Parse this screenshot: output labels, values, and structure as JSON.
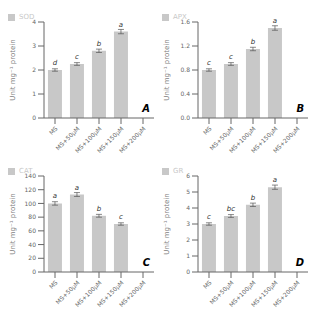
{
  "chart_data": [
    {
      "type": "bar",
      "title": "A",
      "categories": [
        "MS",
        "MS+50μM",
        "MS+100μM",
        "MS+150μM",
        "MS+200μM"
      ],
      "series": [
        {
          "name": "SOD",
          "color": "#c8c8c8",
          "values": [
            2.0,
            2.25,
            2.8,
            3.6,
            null
          ],
          "errors": [
            0.05,
            0.05625,
            0.07,
            0.09,
            null
          ]
        }
      ],
      "annotations": [
        "d",
        "c",
        "b",
        "a",
        null
      ],
      "y_label": "Unit mg⁻¹ protein",
      "ylim": [
        0,
        4.0
      ],
      "yticks": [
        0,
        1,
        2,
        3,
        4
      ],
      "legend": "upper left",
      "grid": false
    },
    {
      "type": "bar",
      "title": "B",
      "categories": [
        "MS",
        "MS+50μM",
        "MS+100μM",
        "MS+150μM",
        "MS+200μM"
      ],
      "series": [
        {
          "name": "APX",
          "color": "#c8c8c8",
          "values": [
            0.8,
            0.9,
            1.15,
            1.5,
            null
          ],
          "errors": [
            0.02,
            0.0225,
            0.02875,
            0.0375,
            null
          ]
        }
      ],
      "annotations": [
        "c",
        "c",
        "b",
        "a",
        null
      ],
      "y_label": "Unit mg⁻¹ protein",
      "ylim": [
        0.0,
        1.6
      ],
      "yticks": [
        {
          "value": 0.0,
          "label": "0.0"
        },
        0.4,
        0.8,
        1.2,
        1.6
      ],
      "legend": "upper left",
      "grid": false
    },
    {
      "type": "bar",
      "title": "C",
      "categories": [
        "MS",
        "MS+50μM",
        "MS+100μM",
        "MS+150μM",
        "MS+200μM"
      ],
      "series": [
        {
          "name": "CAT",
          "color": "#c8c8c8",
          "values": [
            100,
            113,
            82,
            70,
            null
          ],
          "errors": [
            2.5,
            2.825,
            2.05,
            1.75,
            null
          ]
        }
      ],
      "annotations": [
        "a",
        "a",
        "b",
        "c",
        null
      ],
      "y_label": "Unit mg⁻¹ protein",
      "ylim": [
        0,
        140
      ],
      "yticks": [
        0,
        20,
        40,
        60,
        80,
        100,
        120,
        140
      ],
      "legend": "upper left",
      "grid": false
    },
    {
      "type": "bar",
      "title": "D",
      "categories": [
        "MS",
        "MS+50μM",
        "MS+100μM",
        "MS+150μM",
        "MS+200μM"
      ],
      "series": [
        {
          "name": "GR",
          "color": "#c8c8c8",
          "values": [
            3.0,
            3.5,
            4.2,
            5.3,
            null
          ],
          "errors": [
            0.075,
            0.0875,
            0.105,
            0.1325,
            null
          ]
        }
      ],
      "annotations": [
        "c",
        "bc",
        "b",
        "a",
        null
      ],
      "y_label": "Unit mg⁻¹ protein",
      "ylim": [
        0,
        6
      ],
      "yticks": [
        0,
        1,
        2,
        3,
        4,
        5,
        6
      ],
      "legend": "upper left",
      "grid": false
    }
  ]
}
